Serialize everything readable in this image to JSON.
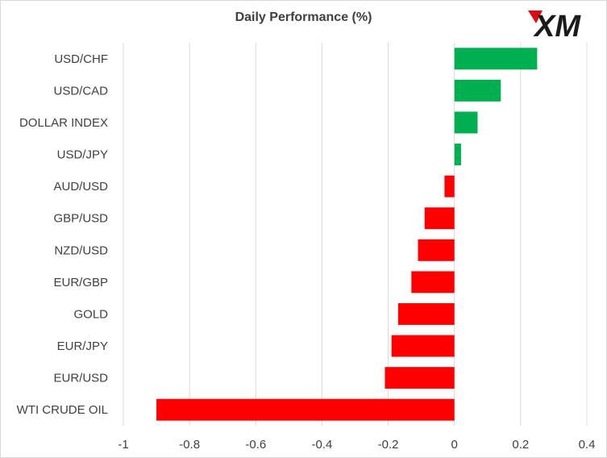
{
  "chart_data": {
    "type": "bar",
    "orientation": "horizontal",
    "title": "Daily Performance  (%)",
    "xlabel": "",
    "ylabel": "",
    "xlim": [
      -1,
      0.4
    ],
    "grid": true,
    "x_ticks": [
      -1,
      -0.8,
      -0.6,
      -0.4,
      -0.2,
      0,
      0.2,
      0.4
    ],
    "x_tick_labels": [
      "-1",
      "-0.8",
      "-0.6",
      "-0.4",
      "-0.2",
      "0",
      "0.2",
      "0.4"
    ],
    "categories": [
      "USD/CHF",
      "USD/CAD",
      "DOLLAR INDEX",
      "USD/JPY",
      "AUD/USD",
      "GBP/USD",
      "NZD/USD",
      "EUR/GBP",
      "GOLD",
      "EUR/JPY",
      "EUR/USD",
      "WTI CRUDE OIL"
    ],
    "values": [
      0.25,
      0.14,
      0.07,
      0.02,
      -0.03,
      -0.09,
      -0.11,
      -0.13,
      -0.17,
      -0.19,
      -0.21,
      -0.9
    ],
    "colors": {
      "positive": "#00b050",
      "negative": "#ff0000",
      "grid": "#d9d9d9",
      "text": "#404040"
    }
  },
  "logo": {
    "text": "XM",
    "accent": "#e30613"
  }
}
